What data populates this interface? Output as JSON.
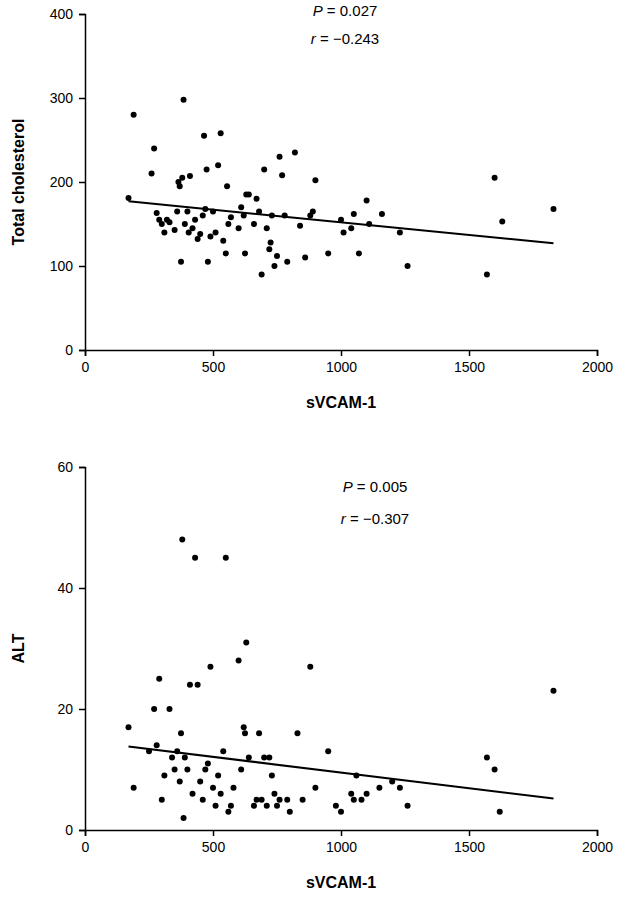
{
  "chart_data": [
    {
      "type": "scatter",
      "xlabel": "sVCAM-1",
      "ylabel": "Total cholesterol",
      "annotations": [
        "P = 0.027",
        "r = −0.243"
      ],
      "color": "#000000",
      "marker": "circle",
      "xlim": [
        0,
        2000
      ],
      "xticks": [
        0,
        500,
        1000,
        1500,
        2000
      ],
      "ylim": [
        0,
        400
      ],
      "yticks": [
        0,
        100,
        200,
        300,
        400
      ],
      "x": [
        170,
        190,
        260,
        270,
        280,
        290,
        300,
        310,
        320,
        330,
        350,
        360,
        365,
        370,
        375,
        380,
        385,
        390,
        400,
        405,
        410,
        420,
        430,
        440,
        450,
        460,
        465,
        470,
        475,
        480,
        490,
        500,
        510,
        520,
        530,
        540,
        550,
        555,
        560,
        570,
        600,
        610,
        620,
        625,
        630,
        640,
        660,
        670,
        680,
        690,
        700,
        710,
        720,
        725,
        730,
        740,
        750,
        760,
        770,
        780,
        790,
        820,
        840,
        860,
        880,
        890,
        900,
        950,
        1000,
        1010,
        1040,
        1050,
        1070,
        1100,
        1110,
        1160,
        1230,
        1260,
        1570,
        1600,
        1630,
        1830
      ],
      "y": [
        181,
        280,
        210,
        240,
        163,
        155,
        150,
        140,
        155,
        152,
        143,
        165,
        200,
        195,
        105,
        205,
        298,
        150,
        165,
        140,
        207,
        145,
        155,
        132,
        138,
        160,
        255,
        168,
        215,
        105,
        135,
        165,
        140,
        220,
        258,
        130,
        115,
        195,
        150,
        158,
        145,
        170,
        160,
        115,
        185,
        185,
        150,
        180,
        165,
        90,
        215,
        145,
        120,
        128,
        160,
        100,
        112,
        230,
        208,
        160,
        105,
        235,
        148,
        110,
        160,
        165,
        202,
        115,
        155,
        140,
        145,
        162,
        115,
        178,
        150,
        162,
        140,
        100,
        90,
        205,
        153,
        168
      ],
      "fit": {
        "x": [
          170,
          1830
        ],
        "y": [
          177,
          127
        ]
      }
    },
    {
      "type": "scatter",
      "xlabel": "sVCAM-1",
      "ylabel": "ALT",
      "annotations": [
        "P = 0.005",
        "r = −0.307"
      ],
      "color": "#000000",
      "marker": "circle",
      "xlim": [
        0,
        2000
      ],
      "xticks": [
        0,
        500,
        1000,
        1500,
        2000
      ],
      "ylim": [
        0,
        60
      ],
      "yticks": [
        0,
        20,
        40,
        60
      ],
      "x": [
        170,
        190,
        250,
        270,
        280,
        290,
        300,
        310,
        330,
        340,
        350,
        360,
        370,
        375,
        380,
        385,
        390,
        400,
        410,
        420,
        430,
        440,
        450,
        460,
        470,
        480,
        490,
        500,
        510,
        520,
        530,
        540,
        550,
        560,
        570,
        580,
        600,
        610,
        620,
        625,
        630,
        640,
        660,
        670,
        680,
        690,
        700,
        710,
        720,
        730,
        740,
        750,
        760,
        790,
        800,
        830,
        850,
        880,
        900,
        950,
        980,
        1000,
        1040,
        1050,
        1060,
        1080,
        1100,
        1150,
        1200,
        1230,
        1260,
        1570,
        1600,
        1620,
        1830
      ],
      "y": [
        17,
        7,
        13,
        20,
        14,
        25,
        5,
        9,
        20,
        12,
        10,
        13,
        8,
        16,
        48,
        2,
        12,
        10,
        24,
        6,
        45,
        24,
        8,
        5,
        10,
        11,
        27,
        7,
        4,
        9,
        6,
        13,
        45,
        3,
        4,
        7,
        28,
        10,
        17,
        16,
        31,
        12,
        4,
        5,
        16,
        5,
        12,
        4,
        12,
        9,
        6,
        4,
        5,
        5,
        3,
        16,
        5,
        27,
        7,
        13,
        4,
        3,
        6,
        5,
        9,
        5,
        6,
        7,
        8,
        7,
        4,
        12,
        10,
        3,
        23
      ],
      "fit": {
        "x": [
          170,
          1830
        ],
        "y": [
          13.8,
          5.2
        ]
      }
    }
  ]
}
